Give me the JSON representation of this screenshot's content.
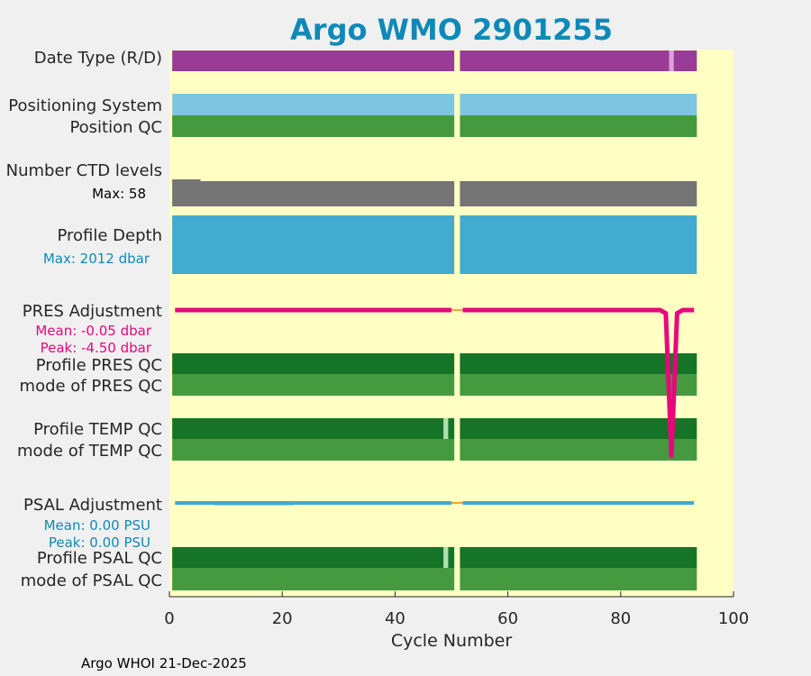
{
  "chart_data": {
    "type": "bar",
    "title": "Argo WMO 2901255",
    "xlabel": "Cycle Number",
    "xlim": [
      0,
      100
    ],
    "x_ticks": [
      0,
      20,
      40,
      60,
      80,
      100
    ],
    "x_tick_labels": [
      "0",
      "20",
      "40",
      "60",
      "80",
      "100"
    ],
    "grid": false,
    "colors": {
      "plot_bg": "#ffffc4",
      "figure_bg": "#f0f0f0",
      "date_type": "#983c98",
      "date_type_alt": "#dda0dd",
      "positioning": "#7ec6e0",
      "qc_good": "#45993f",
      "qc_dark": "#167428",
      "qc_light": "#b2dfb0",
      "ctd": "#747474",
      "depth": "#42abcf",
      "pres": "#e8067d",
      "psal": "#3ca9d2",
      "gap": "#f4a23a",
      "accent_text": "#0f8ab8"
    },
    "rows": [
      {
        "id": "date-type",
        "label": "Date Type (R/D)"
      },
      {
        "id": "positioning-system",
        "label": "Positioning System"
      },
      {
        "id": "position-qc",
        "label": "Position QC"
      },
      {
        "id": "number-ctd-levels",
        "label": "Number CTD levels",
        "stat": "Max: 58"
      },
      {
        "id": "profile-depth",
        "label": "Profile Depth",
        "stat": "Max: 2012 dbar"
      },
      {
        "id": "pres-adjustment",
        "label": "PRES Adjustment",
        "stats": [
          "Mean: -0.05 dbar",
          "Peak: -4.50 dbar"
        ]
      },
      {
        "id": "profile-pres-qc",
        "label": "Profile PRES QC"
      },
      {
        "id": "mode-pres-qc",
        "label": "mode of PRES QC"
      },
      {
        "id": "profile-temp-qc",
        "label": "Profile TEMP QC"
      },
      {
        "id": "mode-temp-qc",
        "label": "mode of TEMP QC"
      },
      {
        "id": "psal-adjustment",
        "label": "PSAL Adjustment",
        "stats": [
          "Mean: 0.00 PSU",
          "Peak: 0.00 PSU"
        ]
      },
      {
        "id": "profile-psal-qc",
        "label": "Profile PSAL QC"
      },
      {
        "id": "mode-psal-qc",
        "label": "mode of PSAL QC"
      }
    ],
    "cycles": {
      "first": 1,
      "last": 93,
      "missing": [
        51
      ]
    },
    "date_type_delayed_cycles": [
      89
    ],
    "temp_qc_flagged_cycles": [
      49
    ],
    "psal_qc_flagged_cycles": [
      49
    ],
    "pres_adjustment_dbar": [
      {
        "cycle": 1,
        "value": 0.0
      },
      {
        "cycle": 87,
        "value": 0.0
      },
      {
        "cycle": 88,
        "value": -0.1
      },
      {
        "cycle": 89,
        "value": -4.5
      },
      {
        "cycle": 90,
        "value": -0.1
      },
      {
        "cycle": 91,
        "value": 0.0
      },
      {
        "cycle": 93,
        "value": 0.0
      }
    ],
    "psal_adjustment_psu": [
      {
        "cycle": 1,
        "value": 0.0
      },
      {
        "cycle": 93,
        "value": 0.0
      }
    ]
  },
  "footer": "Argo WHOI 21-Dec-2025"
}
